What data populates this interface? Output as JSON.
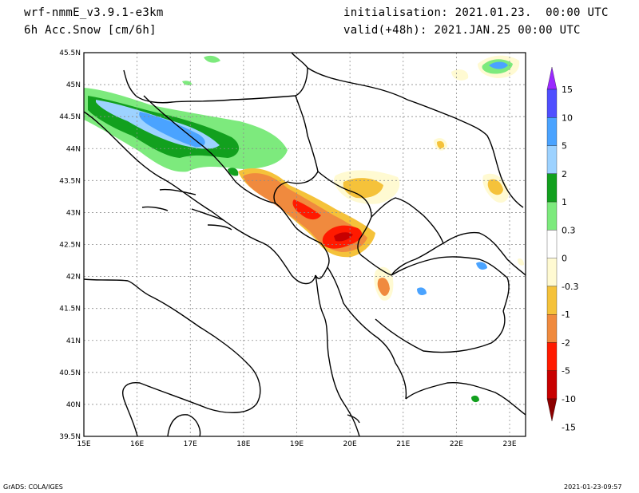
{
  "header": {
    "model": "wrf-nmmE_v3.9.1-e3km",
    "variable": "6h Acc.Snow [cm/6h]",
    "init": "initialisation: 2021.01.23.  00:00 UTC",
    "valid": "valid(+48h): 2021.JAN.25 00:00 UTC"
  },
  "map": {
    "lat_labels": [
      "45.5N",
      "45N",
      "44.5N",
      "44N",
      "43.5N",
      "43N",
      "42.5N",
      "42N",
      "41.5N",
      "41N",
      "40.5N",
      "40N",
      "39.5N"
    ],
    "lon_labels": [
      "15E",
      "16E",
      "17E",
      "18E",
      "19E",
      "20E",
      "21E",
      "22E",
      "23E"
    ],
    "extent": {
      "lon": [
        15,
        23.3
      ],
      "lat": [
        39.5,
        45.5
      ]
    }
  },
  "colorbar": {
    "labels": [
      "15",
      "10",
      "5",
      "2",
      "1",
      "0.3",
      "0",
      "-0.3",
      "-1",
      "-2",
      "-5",
      "-10",
      "-15"
    ],
    "colors": [
      "#9a28ff",
      "#4f4fff",
      "#4aa3ff",
      "#9dd2ff",
      "#12a01e",
      "#7dea7d",
      "#ffffff",
      "#fffad2",
      "#f5c23a",
      "#f08a3e",
      "#ff1a00",
      "#c80000",
      "#8c0000"
    ]
  },
  "footer": {
    "left": "GrADS: COLA/IGES",
    "right": "2021-01-23-09:57"
  }
}
